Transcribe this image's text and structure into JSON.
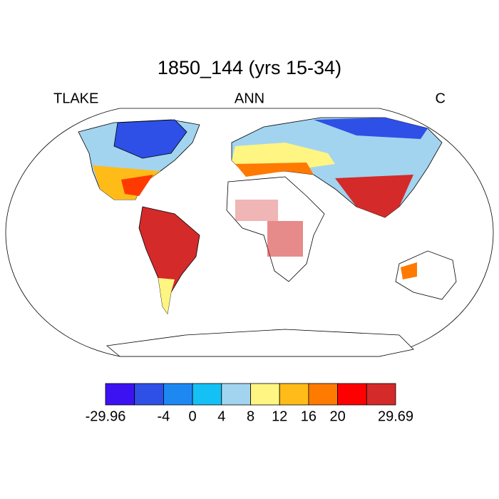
{
  "title": "1850_144 (yrs 15-34)",
  "left_label": "TLAKE",
  "center_label": "ANN",
  "right_label": "C",
  "colorbar": {
    "colors": [
      "#3d12f2",
      "#2e50e6",
      "#1e88f2",
      "#14c0f5",
      "#a2d4f0",
      "#fff582",
      "#ffbc18",
      "#ff7a00",
      "#ff0000",
      "#d42a2a"
    ],
    "levels": [
      -29.96,
      null,
      -4,
      0,
      4,
      8,
      12,
      16,
      20,
      null,
      29.69
    ]
  }
}
